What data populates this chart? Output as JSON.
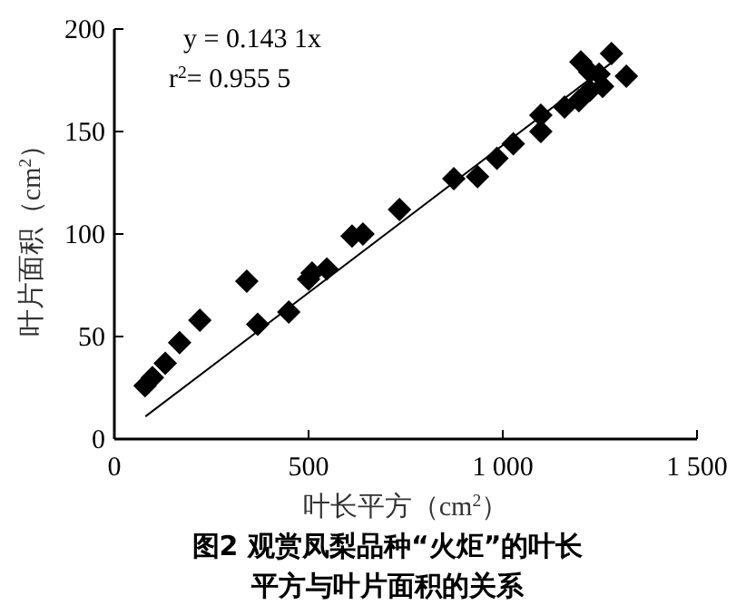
{
  "chart_data": {
    "type": "scatter",
    "title": "图2  观赏凤梨品种“火炬”的叶长平方与叶片面积的关系",
    "xlabel": "叶长平方（cm$^{2}$）",
    "ylabel": "叶片面积（cm$^{2}$）",
    "annotations": [
      "y = 0.143 1x",
      "r$^{2}$= 0.955 5"
    ],
    "xlim": [
      0,
      1500
    ],
    "xticks": [
      0,
      500,
      {
        "value": 1000,
        "label": "1 000"
      },
      {
        "value": 1500,
        "label": "1 500"
      }
    ],
    "ylim": [
      0,
      200
    ],
    "yticks": [
      0,
      50,
      100,
      150,
      200
    ],
    "grid": false,
    "series": [
      {
        "color": "#000000",
        "marker": "diamond",
        "x": [
          79,
          98,
          131,
          168,
          220,
          341,
          369,
          449,
          500,
          509,
          547,
          612,
          640,
          734,
          874,
          935,
          985,
          1027,
          1098,
          1098,
          1159,
          1196,
          1224,
          1201,
          1224,
          1257,
          1248,
          1280,
          1318
        ],
        "values": [
          26,
          30,
          37,
          47,
          58,
          77,
          56,
          62,
          78,
          81,
          83,
          99,
          100,
          112,
          127,
          128,
          137,
          144,
          158,
          150,
          162,
          165,
          170,
          184,
          179,
          172,
          178,
          188,
          177
        ]
      },
      {
        "type": "line",
        "color": "#000000",
        "marker": "none",
        "x": [
          80,
          1290
        ],
        "values": [
          11,
          185
        ]
      }
    ]
  }
}
